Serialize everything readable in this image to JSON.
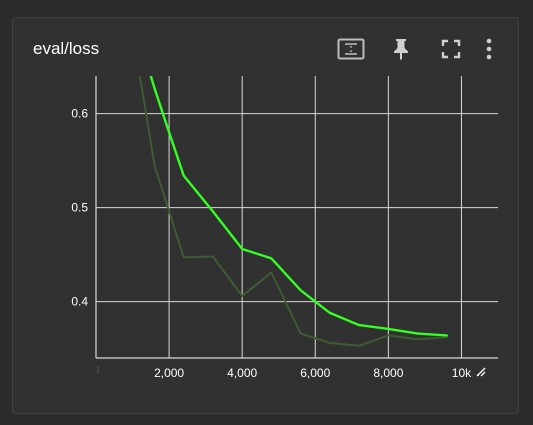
{
  "card": {
    "title": "eval/loss",
    "icons": [
      "fit-domain-icon",
      "pin-icon",
      "fullscreen-icon",
      "more-vert-icon"
    ]
  },
  "colors": {
    "smoothed": "#33ff22",
    "raw": "#3d5c33",
    "grid": "#d8d8d8",
    "text": "#ffffff",
    "background": "#313131"
  },
  "chart_data": {
    "type": "line",
    "title": "eval/loss",
    "xlabel": "",
    "ylabel": "",
    "xlim": [
      0,
      11000
    ],
    "ylim": [
      0.34,
      0.64
    ],
    "x_ticks": [
      {
        "value": 2000,
        "label": "2,000"
      },
      {
        "value": 4000,
        "label": "4,000"
      },
      {
        "value": 6000,
        "label": "6,000"
      },
      {
        "value": 8000,
        "label": "8,000"
      },
      {
        "value": 10000,
        "label": "10k"
      }
    ],
    "y_ticks": [
      {
        "value": 0.4,
        "label": "0.4"
      },
      {
        "value": 0.5,
        "label": "0.5"
      },
      {
        "value": 0.6,
        "label": "0.6"
      }
    ],
    "grid": true,
    "series": [
      {
        "role": "raw",
        "x": [
          1200,
          1600,
          2400,
          3200,
          4000,
          4800,
          5600,
          6400,
          7200,
          8000,
          8800,
          9600
        ],
        "y": [
          0.64,
          0.545,
          0.447,
          0.448,
          0.406,
          0.431,
          0.366,
          0.356,
          0.353,
          0.364,
          0.36,
          0.362
        ]
      },
      {
        "role": "smoothed",
        "x": [
          1500,
          1600,
          2000,
          2400,
          3200,
          4000,
          4800,
          5600,
          6400,
          7200,
          8000,
          8800,
          9600
        ],
        "y": [
          0.64,
          0.627,
          0.58,
          0.534,
          0.496,
          0.456,
          0.446,
          0.412,
          0.388,
          0.375,
          0.371,
          0.366,
          0.364
        ]
      }
    ]
  }
}
